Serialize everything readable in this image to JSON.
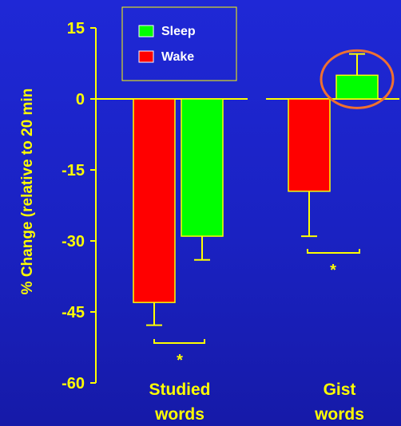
{
  "chart_data": {
    "type": "bar",
    "ylabel": "% Change (relative to 20 min",
    "yticks": [
      15,
      0,
      -15,
      -30,
      -45,
      -60
    ],
    "ylim": [
      -60,
      15
    ],
    "categories": [
      "Studied words",
      "Gist words"
    ],
    "category_lines": [
      [
        "Studied",
        "words"
      ],
      [
        "Gist",
        "words"
      ]
    ],
    "series": [
      {
        "name": "Wake",
        "values": [
          -43,
          -19.5
        ],
        "errors": [
          4.8,
          9.5
        ]
      },
      {
        "name": "Sleep",
        "values": [
          -29,
          5
        ],
        "errors": [
          5,
          4.5
        ]
      }
    ],
    "legend": {
      "placement": "top-left",
      "order": [
        "Sleep",
        "Wake"
      ]
    },
    "significance": [
      {
        "category": "Studied words",
        "label": "*"
      },
      {
        "category": "Gist words",
        "label": "*"
      }
    ],
    "highlight": {
      "category": "Gist words",
      "series": "Sleep",
      "shape": "circle"
    },
    "colors": {
      "Wake": "#ff0000",
      "Sleep": "#00ff00",
      "bar_edge": "#ffff00",
      "axis": "#ffff00",
      "text": "#ffff00",
      "legend_text": "#ffffff",
      "highlight": "#f07030"
    }
  }
}
